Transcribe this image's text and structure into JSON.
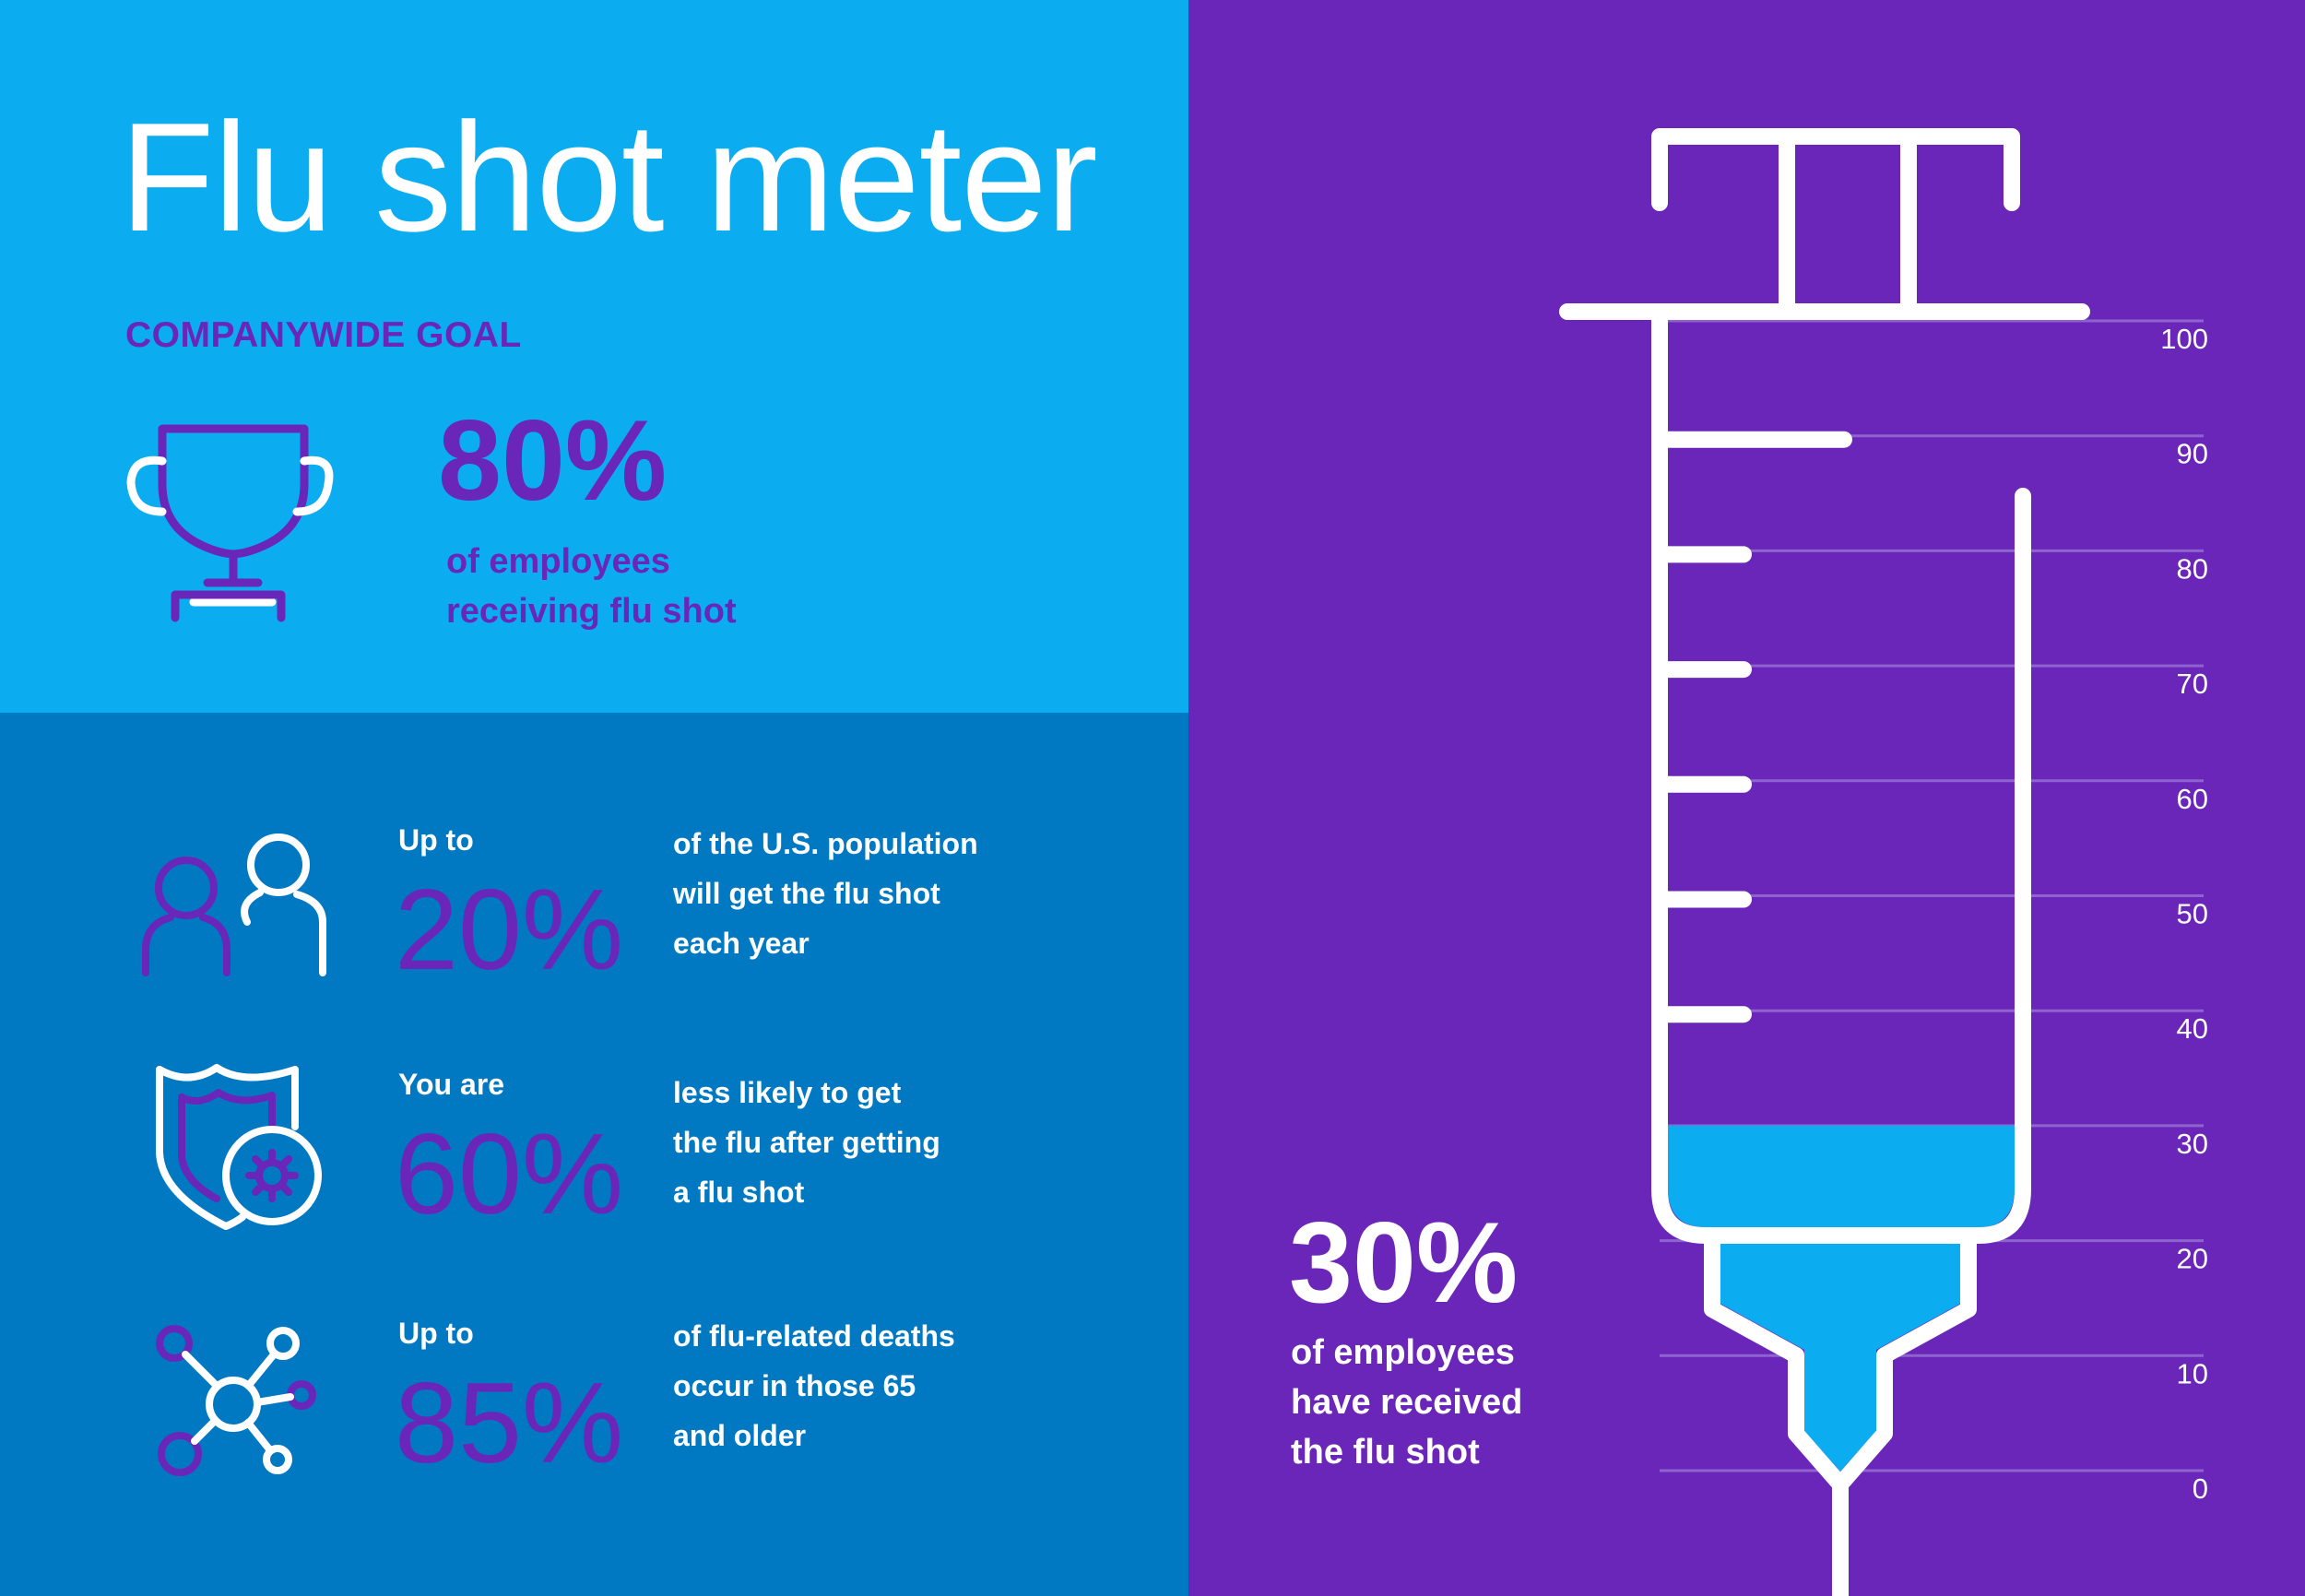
{
  "title": "Flu shot meter",
  "goal": {
    "label": "COMPANYWIDE GOAL",
    "value": "80%",
    "caption_line1": "of employees",
    "caption_line2": "receiving flu shot"
  },
  "stats": [
    {
      "prefix": "Up to",
      "value": "20%",
      "desc_lines": [
        "of the U.S. population",
        "will get the flu shot",
        "each year"
      ],
      "icon": "people-icon"
    },
    {
      "prefix": "You are",
      "value": "60%",
      "desc_lines": [
        "less likely to get",
        "the flu after getting",
        "a flu shot"
      ],
      "icon": "shield-virus-icon"
    },
    {
      "prefix": "Up to",
      "value": "85%",
      "desc_lines": [
        "of flu-related deaths",
        "occur in those 65",
        "and older"
      ],
      "icon": "network-icon"
    }
  ],
  "current": {
    "value": "30%",
    "caption_line1": "of employees",
    "caption_line2": "have received",
    "caption_line3": "the flu shot"
  },
  "chart_data": {
    "type": "bar",
    "categories": [
      "employees received flu shot"
    ],
    "values": [
      30
    ],
    "ylim": [
      0,
      100
    ],
    "ticks": [
      100,
      90,
      80,
      70,
      60,
      50,
      40,
      30,
      20,
      10,
      0
    ],
    "title": "",
    "xlabel": "",
    "ylabel": ""
  },
  "colors": {
    "light_blue": "#0BADF0",
    "dark_blue": "#0078C2",
    "purple": "#6A26B8",
    "white": "#FFFFFF"
  }
}
